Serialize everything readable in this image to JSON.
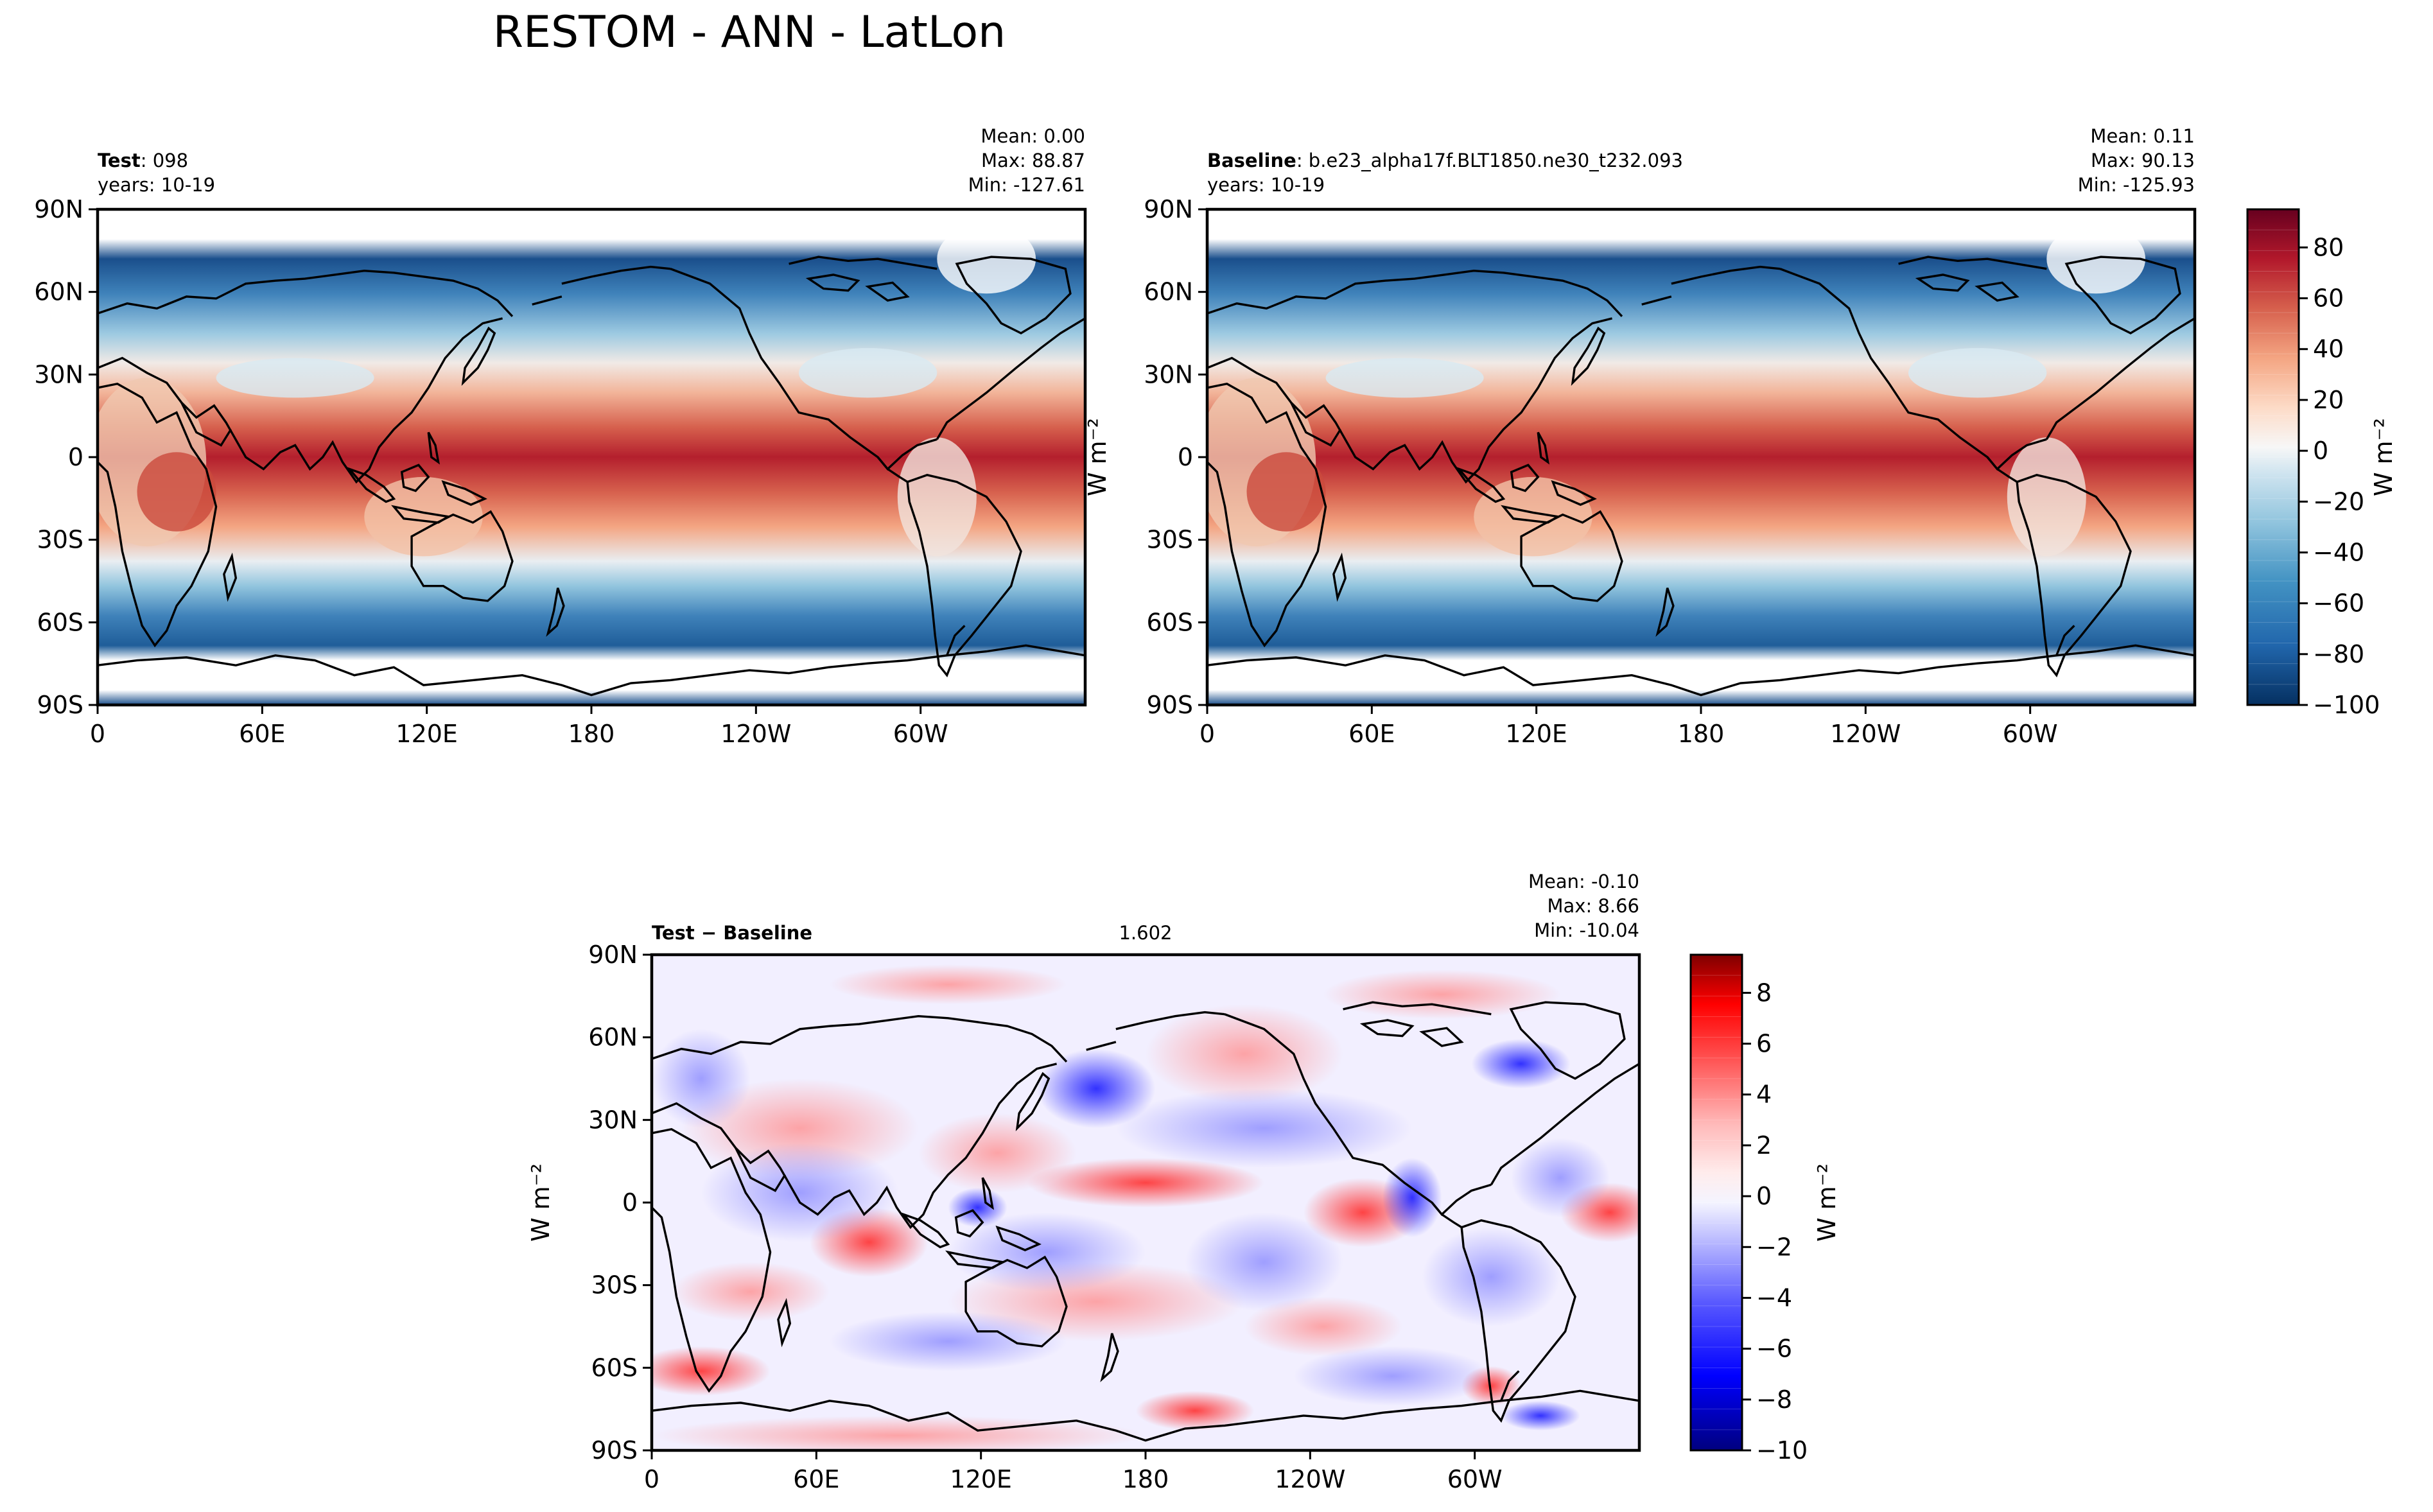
{
  "figure": {
    "title": "RESTOM - ANN - LatLon"
  },
  "chart_data": [
    {
      "type": "heatmap",
      "panel": "test",
      "label_bold": "Test",
      "label_rest": ": 098",
      "years": "years: 10-19",
      "stats": {
        "mean": "Mean:  0.00",
        "max": "Max: 88.87",
        "min": "Min: -127.61"
      },
      "field": "RESTOM annual mean, model Test 098",
      "units": "W m⁻²",
      "xticks": [
        "0",
        "60E",
        "120E",
        "180",
        "120W",
        "60W"
      ],
      "yticks": [
        "90N",
        "60N",
        "30N",
        "0",
        "30S",
        "60S",
        "90S"
      ],
      "xlim": [
        0,
        360
      ],
      "ylim": [
        -90,
        90
      ],
      "mean": 0.0,
      "max": 88.87,
      "min": -127.61
    },
    {
      "type": "heatmap",
      "panel": "baseline",
      "label_bold": "Baseline",
      "label_rest": ": b.e23_alpha17f.BLT1850.ne30_t232.093",
      "years": "years: 10-19",
      "stats": {
        "mean": "Mean:  0.11",
        "max": "Max: 90.13",
        "min": "Min: -125.93"
      },
      "field": "RESTOM annual mean, baseline",
      "units": "W m⁻²",
      "xticks": [
        "0",
        "60E",
        "120E",
        "180",
        "120W",
        "60W"
      ],
      "yticks": [
        "90N",
        "60N",
        "30N",
        "0",
        "30S",
        "60S",
        "90S"
      ],
      "xlim": [
        0,
        360
      ],
      "ylim": [
        -90,
        90
      ],
      "mean": 0.11,
      "max": 90.13,
      "min": -125.93
    },
    {
      "type": "heatmap",
      "panel": "difference",
      "label_bold": "Test − Baseline",
      "rmse": 1.602,
      "stats": {
        "mean": "Mean: -0.10",
        "max": "Max:  8.66",
        "min": "Min: -10.04"
      },
      "field": "RESTOM difference Test minus Baseline",
      "units": "W m⁻²",
      "xticks": [
        "0",
        "60E",
        "120E",
        "180",
        "120W",
        "60W"
      ],
      "yticks": [
        "90N",
        "60N",
        "30N",
        "0",
        "30S",
        "60S",
        "90S"
      ],
      "xlim": [
        0,
        360
      ],
      "ylim": [
        -90,
        90
      ],
      "mean": -0.1,
      "max": 8.66,
      "min": -10.04
    }
  ],
  "colorbar_top": {
    "ticks": [
      "80",
      "60",
      "40",
      "20",
      "0",
      "−20",
      "−40",
      "−60",
      "−80",
      "−100"
    ],
    "range": [
      -100,
      95
    ],
    "label": "W m⁻²",
    "colors": [
      "#053061",
      "#2166ac",
      "#4393c3",
      "#92c5de",
      "#d1e5f0",
      "#f7f7f7",
      "#fddbc7",
      "#f4a582",
      "#d6604d",
      "#b2182b",
      "#67001f"
    ]
  },
  "colorbar_diff": {
    "ticks": [
      "8",
      "6",
      "4",
      "2",
      "0",
      "−2",
      "−4",
      "−6",
      "−8",
      "−10"
    ],
    "range": [
      -10,
      9.5
    ],
    "label": "W m⁻²",
    "colors": [
      "#00007f",
      "#0000ff",
      "#5a5aff",
      "#b8b8ff",
      "#f4f4ff",
      "#ffecec",
      "#ffb8b8",
      "#ff5a5a",
      "#ff0000",
      "#7f0000"
    ]
  }
}
